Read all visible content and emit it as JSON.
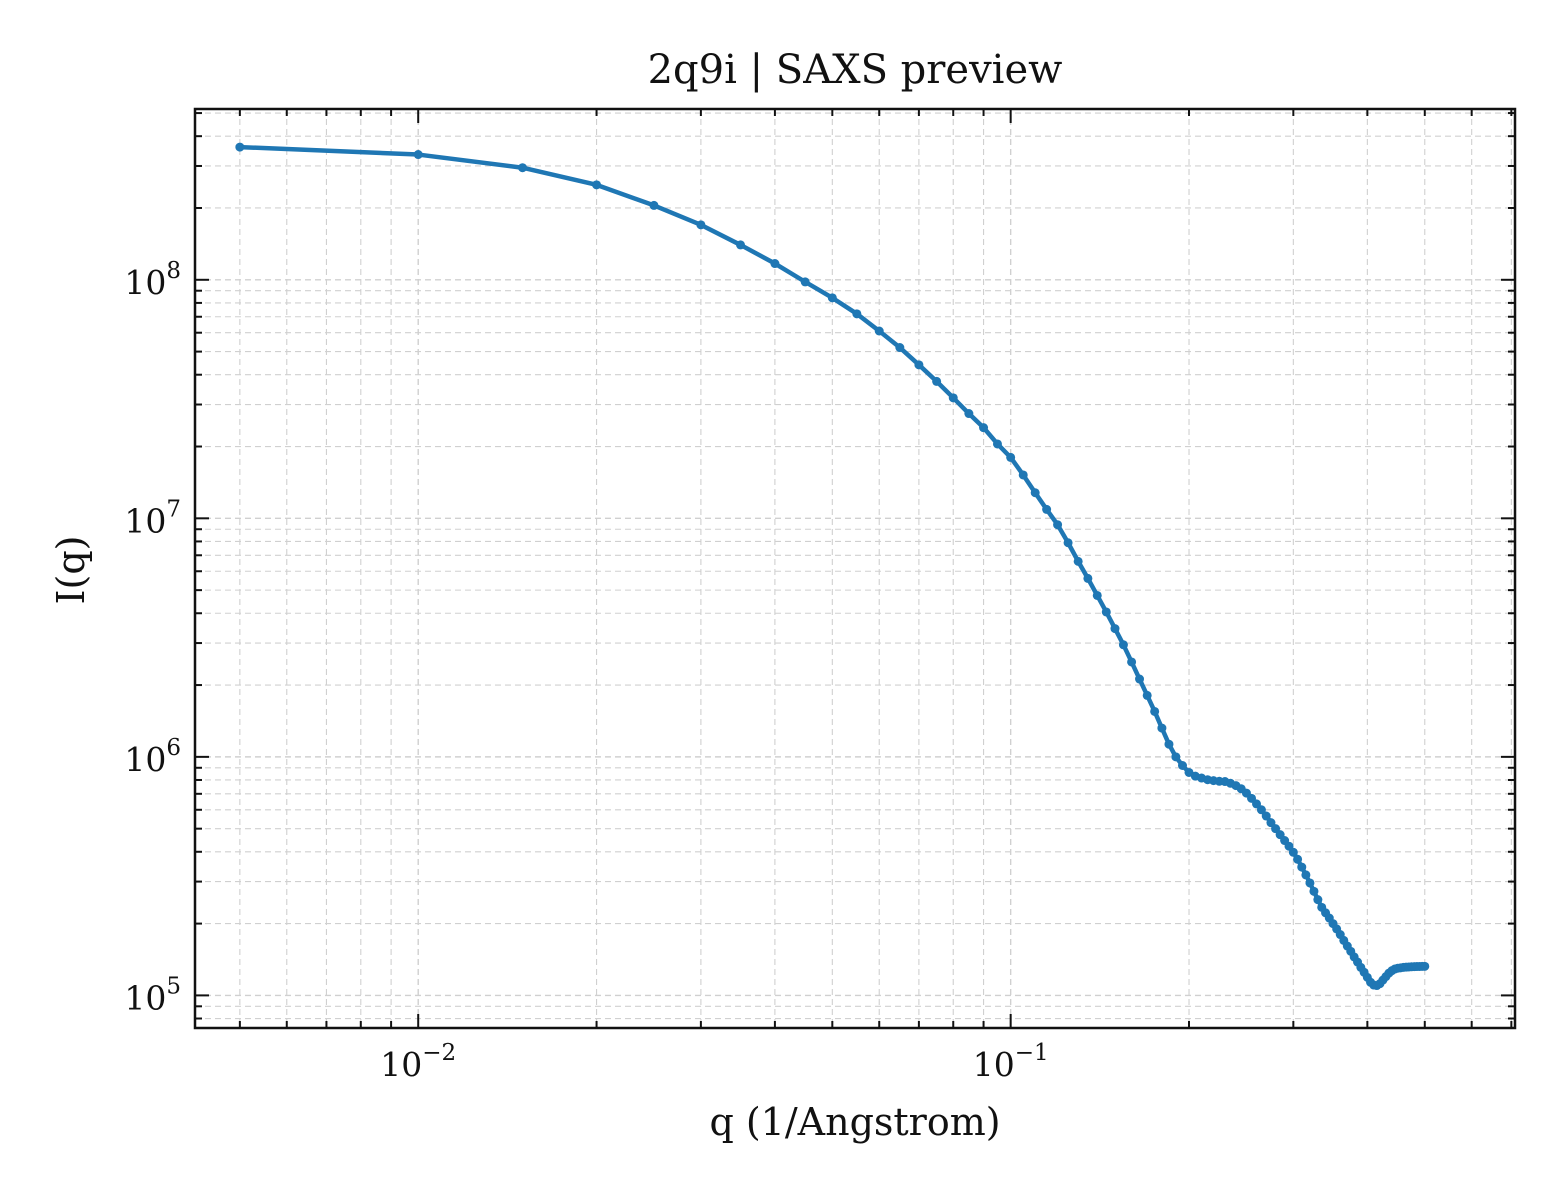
{
  "chart_data": {
    "type": "line",
    "title": "2q9i | SAXS preview",
    "xlabel": "q (1/Angstrom)",
    "ylabel": "I(q)",
    "xscale": "log",
    "yscale": "log",
    "xlim": [
      0.0042,
      0.71
    ],
    "ylim": [
      73000,
      520000000
    ],
    "grid": true,
    "marker": "circle",
    "color": "#1f77b4",
    "x_ticks": [
      {
        "value": 0.01,
        "base": "10",
        "exp": "−2"
      },
      {
        "value": 0.1,
        "base": "10",
        "exp": "−1"
      }
    ],
    "y_ticks": [
      {
        "value": 100000,
        "base": "10",
        "exp": "5"
      },
      {
        "value": 1000000,
        "base": "10",
        "exp": "6"
      },
      {
        "value": 10000000,
        "base": "10",
        "exp": "7"
      },
      {
        "value": 100000000,
        "base": "10",
        "exp": "8"
      }
    ],
    "series": [
      {
        "x": [
          0.005,
          0.01,
          0.015,
          0.02,
          0.025,
          0.03,
          0.035,
          0.04,
          0.045,
          0.05,
          0.055,
          0.06,
          0.065,
          0.07,
          0.075,
          0.08,
          0.085,
          0.09,
          0.095,
          0.1,
          0.105,
          0.11,
          0.115,
          0.12,
          0.125,
          0.13,
          0.135,
          0.14,
          0.145,
          0.15,
          0.155,
          0.16,
          0.165,
          0.17,
          0.175,
          0.18,
          0.185,
          0.19,
          0.195,
          0.2,
          0.205,
          0.21,
          0.215,
          0.22,
          0.225,
          0.23,
          0.235,
          0.24,
          0.245,
          0.25,
          0.255,
          0.26,
          0.265,
          0.27,
          0.275,
          0.28,
          0.285,
          0.29,
          0.295,
          0.3,
          0.305,
          0.31,
          0.315,
          0.32,
          0.325,
          0.33,
          0.335,
          0.34,
          0.345,
          0.35,
          0.355,
          0.36,
          0.365,
          0.37,
          0.375,
          0.38,
          0.385,
          0.39,
          0.395,
          0.4,
          0.405,
          0.41,
          0.415,
          0.42,
          0.425,
          0.43,
          0.435,
          0.44,
          0.445,
          0.45,
          0.455,
          0.46,
          0.465,
          0.47,
          0.475,
          0.48,
          0.485,
          0.49,
          0.495,
          0.5
        ],
        "y": [
          360000000,
          335000000,
          295000000,
          250000000,
          205000000,
          170000000,
          140000000,
          117000000,
          98000000,
          84000000,
          72000000,
          61000000,
          52000000,
          44000000,
          37500000,
          32000000,
          27500000,
          24000000,
          20500000,
          18000000,
          15200000,
          12800000,
          10900000,
          9400000,
          7900000,
          6600000,
          5600000,
          4750000,
          4050000,
          3450000,
          2950000,
          2500000,
          2120000,
          1810000,
          1550000,
          1320000,
          1130000,
          1000000,
          920000,
          860000,
          830000,
          815000,
          802000,
          795000,
          790000,
          788000,
          775000,
          758000,
          735000,
          705000,
          670000,
          635000,
          600000,
          565000,
          530000,
          500000,
          472000,
          446000,
          422000,
          398000,
          372000,
          345000,
          320000,
          296000,
          273000,
          252000,
          234000,
          222000,
          211000,
          200000,
          190000,
          180000,
          170000,
          161000,
          153000,
          145000,
          138000,
          131000,
          125000,
          119000,
          113500,
          110500,
          110000,
          112000,
          116000,
          120000,
          124000,
          127000,
          129000,
          130000,
          130500,
          131000,
          131300,
          131600,
          131800,
          132000,
          132100,
          132200,
          132300,
          132400
        ]
      }
    ]
  }
}
